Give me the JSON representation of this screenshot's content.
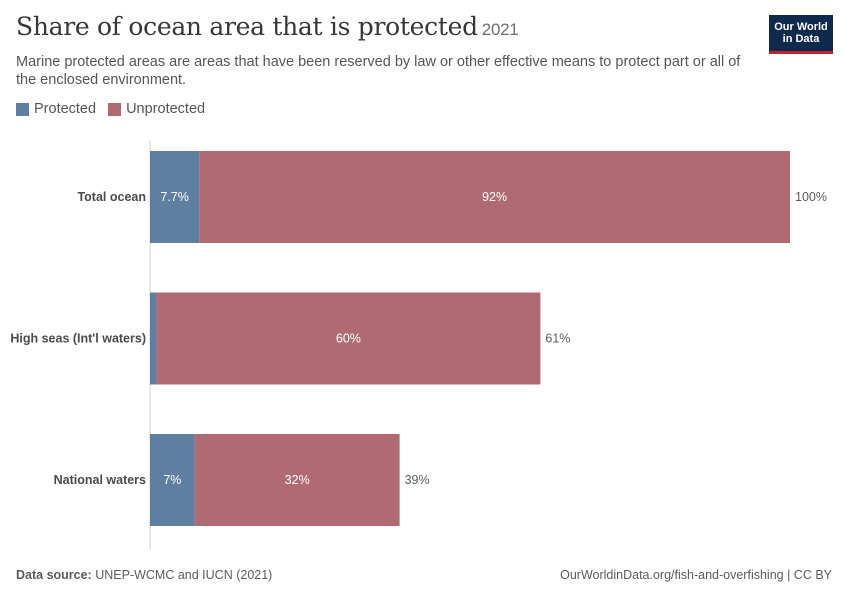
{
  "header": {
    "title": "Share of ocean area that is protected",
    "year": "2021",
    "subtitle": "Marine protected areas are areas that have been reserved by law or other effective means to protect part or all of the enclosed environment.",
    "logo_line1": "Our World",
    "logo_line2": "in Data"
  },
  "legend": [
    {
      "label": "Protected",
      "color": "#5f7fa0"
    },
    {
      "label": "Unprotected",
      "color": "#b06b72"
    }
  ],
  "footer": {
    "source_label": "Data source:",
    "source_text": "UNEP-WCMC and IUCN (2021)",
    "url": "OurWorldinData.org/fish-and-overfishing | CC BY"
  },
  "chart_data": {
    "type": "bar",
    "orientation": "horizontal",
    "stacked": true,
    "categories": [
      "Total ocean",
      "High seas (Int'l waters)",
      "National waters"
    ],
    "series": [
      {
        "name": "Protected",
        "color": "#5f7fa0",
        "values": [
          7.7,
          1.0,
          7.0
        ],
        "labels": [
          "7.7%",
          "",
          "7%"
        ]
      },
      {
        "name": "Unprotected",
        "color": "#b06b72",
        "values": [
          92.3,
          60.0,
          32.0
        ],
        "labels": [
          "92%",
          "60%",
          "32%"
        ]
      }
    ],
    "totals": [
      "100%",
      "61%",
      "39%"
    ],
    "xlim": [
      0,
      100
    ],
    "grid": false,
    "legend_position": "top-left"
  }
}
